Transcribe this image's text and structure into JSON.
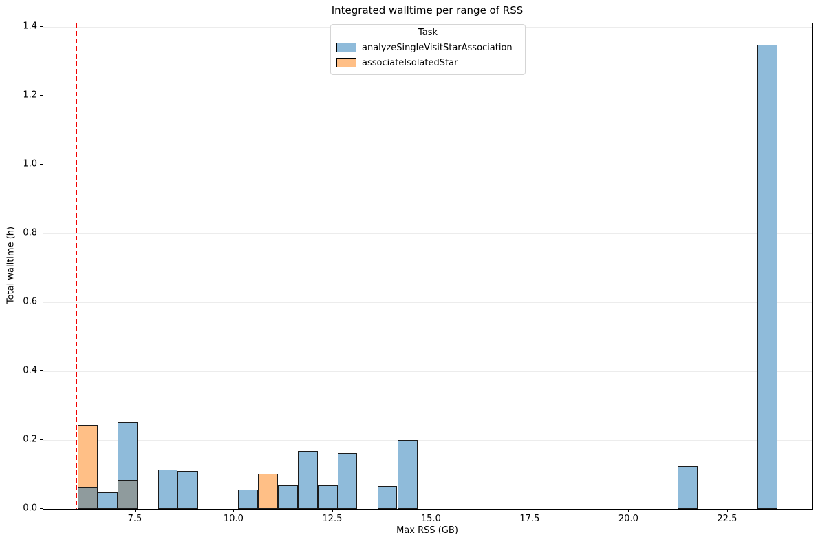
{
  "title": "Integrated walltime per range of RSS",
  "axes": {
    "xlabel": "Max RSS (GB)",
    "ylabel": "Total walltime (h)",
    "xlim": [
      5.166,
      24.645
    ],
    "ylim": [
      0,
      1.41
    ],
    "x_ticks": [
      {
        "v": 7.5,
        "label": "7.5"
      },
      {
        "v": 10.0,
        "label": "10.0"
      },
      {
        "v": 12.5,
        "label": "12.5"
      },
      {
        "v": 15.0,
        "label": "15.0"
      },
      {
        "v": 17.5,
        "label": "17.5"
      },
      {
        "v": 20.0,
        "label": "20.0"
      },
      {
        "v": 22.5,
        "label": "22.5"
      }
    ],
    "y_ticks": [
      {
        "v": 0.0,
        "label": "0.0"
      },
      {
        "v": 0.2,
        "label": "0.2"
      },
      {
        "v": 0.4,
        "label": "0.4"
      },
      {
        "v": 0.6,
        "label": "0.6"
      },
      {
        "v": 0.8,
        "label": "0.8"
      },
      {
        "v": 1.0,
        "label": "1.0"
      },
      {
        "v": 1.2,
        "label": "1.2"
      },
      {
        "v": 1.4,
        "label": "1.4"
      }
    ],
    "grid": "horizontal-only"
  },
  "legend": {
    "title": "Task",
    "items": [
      {
        "label": "analyzeSingleVisitStarAssociation",
        "color": "#8fbbda"
      },
      {
        "label": "associateIsolatedStar",
        "color": "#ffbf86"
      }
    ]
  },
  "reference_line": {
    "x": 6.0,
    "color": "#f10000",
    "style": "dashed"
  },
  "colors": {
    "analyzeSingleVisitStarAssociation": "#8fbbda",
    "associateIsolatedStar": "#ffbf86",
    "overlap": "#8f9b9d",
    "bar_edge": "#1b1b1b",
    "grid": "#ececec"
  },
  "chart_data": {
    "type": "bar",
    "subtype": "histogram",
    "title": "Integrated walltime per range of RSS",
    "xlabel": "Max RSS (GB)",
    "ylabel": "Total walltime (h)",
    "xlim": [
      5.166,
      24.645
    ],
    "ylim": [
      0,
      1.41
    ],
    "bin_width_gb": 0.506,
    "series_names": [
      "analyzeSingleVisitStarAssociation",
      "associateIsolatedStar"
    ],
    "bars": [
      {
        "x0": 6.04,
        "x1": 6.55,
        "values": {
          "analyzeSingleVisitStarAssociation": 0.064,
          "associateIsolatedStar": 0.244
        }
      },
      {
        "x0": 6.55,
        "x1": 7.05,
        "values": {
          "analyzeSingleVisitStarAssociation": 0.048
        }
      },
      {
        "x0": 7.05,
        "x1": 7.56,
        "values": {
          "analyzeSingleVisitStarAssociation": 0.252,
          "associateIsolatedStar": 0.084
        }
      },
      {
        "x0": 8.07,
        "x1": 8.57,
        "values": {
          "analyzeSingleVisitStarAssociation": 0.114
        }
      },
      {
        "x0": 8.57,
        "x1": 9.08,
        "values": {
          "analyzeSingleVisitStarAssociation": 0.11
        }
      },
      {
        "x0": 10.09,
        "x1": 10.6,
        "values": {
          "analyzeSingleVisitStarAssociation": 0.057
        }
      },
      {
        "x0": 10.6,
        "x1": 11.1,
        "values": {
          "associateIsolatedStar": 0.102
        }
      },
      {
        "x0": 11.1,
        "x1": 11.61,
        "values": {
          "analyzeSingleVisitStarAssociation": 0.069
        }
      },
      {
        "x0": 11.61,
        "x1": 12.11,
        "values": {
          "analyzeSingleVisitStarAssociation": 0.169
        }
      },
      {
        "x0": 12.11,
        "x1": 12.62,
        "values": {
          "analyzeSingleVisitStarAssociation": 0.069
        }
      },
      {
        "x0": 12.62,
        "x1": 13.12,
        "values": {
          "analyzeSingleVisitStarAssociation": 0.163
        }
      },
      {
        "x0": 13.63,
        "x1": 14.13,
        "values": {
          "analyzeSingleVisitStarAssociation": 0.067
        }
      },
      {
        "x0": 14.13,
        "x1": 14.64,
        "values": {
          "analyzeSingleVisitStarAssociation": 0.2
        }
      },
      {
        "x0": 21.23,
        "x1": 21.73,
        "values": {
          "analyzeSingleVisitStarAssociation": 0.125
        }
      },
      {
        "x0": 23.25,
        "x1": 23.76,
        "values": {
          "analyzeSingleVisitStarAssociation": 1.348
        }
      }
    ]
  }
}
